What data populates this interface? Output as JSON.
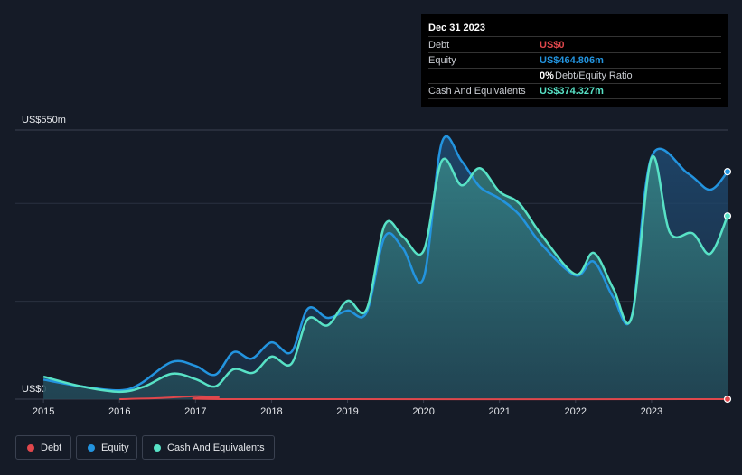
{
  "chart_data": {
    "type": "line",
    "xlim": [
      2014.63,
      2024.0
    ],
    "xticks": [
      2015,
      2016,
      2017,
      2018,
      2019,
      2020,
      2021,
      2022,
      2023
    ],
    "ylim": [
      0,
      550
    ],
    "yticks": [
      {
        "value": 0,
        "label": "US$0"
      },
      {
        "value": 550,
        "label": "US$550m"
      }
    ],
    "grid": [
      200,
      400
    ],
    "series": [
      {
        "name": "Debt",
        "color": "#e0474c",
        "x": [
          2016,
          2016.5,
          2017,
          2017.3,
          2017.5,
          2024
        ],
        "values": [
          0,
          2,
          6,
          4,
          0,
          0
        ]
      },
      {
        "name": "Equity",
        "color": "#2394df",
        "x": [
          2015,
          2015.5,
          2016,
          2016.27,
          2016.69,
          2017,
          2017.26,
          2017.5,
          2017.74,
          2018,
          2018.26,
          2018.48,
          2018.74,
          2019,
          2019.25,
          2019.49,
          2019.73,
          2020,
          2020.24,
          2020.5,
          2020.74,
          2021,
          2021.26,
          2021.55,
          2022,
          2022.24,
          2022.5,
          2022.74,
          2023,
          2023.48,
          2023.77,
          2024
        ],
        "values": [
          40,
          26,
          18,
          31,
          76,
          68,
          50,
          96,
          83,
          116,
          96,
          185,
          166,
          181,
          177,
          332,
          308,
          247,
          524,
          487,
          434,
          410,
          377,
          317,
          253,
          281,
          207,
          170,
          495,
          461,
          428,
          464.806
        ]
      },
      {
        "name": "Cash And Equivalents",
        "color": "#58e2c6",
        "x": [
          2015,
          2015.5,
          2016,
          2016.33,
          2016.69,
          2017,
          2017.26,
          2017.5,
          2017.76,
          2018,
          2018.26,
          2018.48,
          2018.74,
          2019,
          2019.25,
          2019.49,
          2019.73,
          2020,
          2020.24,
          2020.5,
          2020.74,
          2021,
          2021.26,
          2021.55,
          2022,
          2022.24,
          2022.5,
          2022.74,
          2023,
          2023.24,
          2023.54,
          2023.77,
          2024
        ],
        "values": [
          46,
          26,
          15,
          26,
          52,
          41,
          26,
          61,
          54,
          87,
          72,
          164,
          151,
          201,
          183,
          356,
          332,
          303,
          487,
          437,
          472,
          424,
          400,
          336,
          255,
          299,
          225,
          168,
          493,
          341,
          339,
          297,
          374.327
        ]
      }
    ]
  },
  "tooltip": {
    "title": "Dec 31 2023",
    "rows": [
      {
        "label": "Debt",
        "value": "US$0"
      },
      {
        "label": "Equity",
        "value": "US$464.806m"
      },
      {
        "value": "0%",
        "label": "Debt/Equity Ratio"
      },
      {
        "label": "Cash And Equivalents",
        "value": "US$374.327m"
      }
    ]
  }
}
